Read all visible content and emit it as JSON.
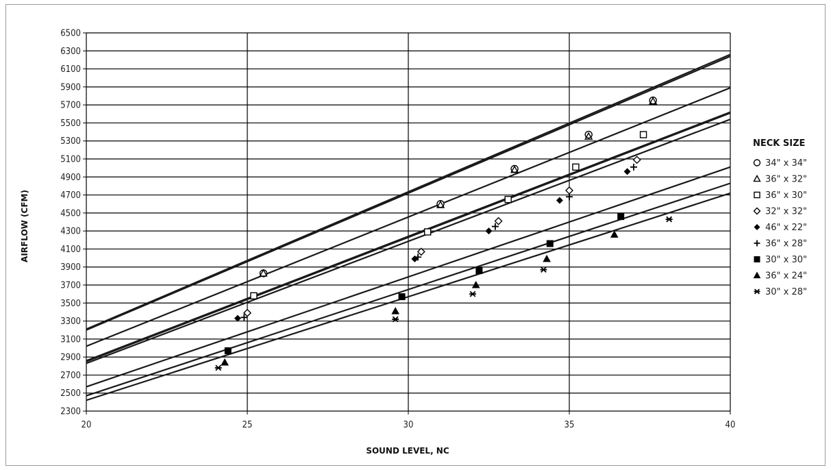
{
  "chart_data": {
    "type": "line",
    "title": "",
    "xlabel": "SOUND LEVEL, NC",
    "ylabel": "AIRFLOW (CFM)",
    "xlim": [
      20,
      40
    ],
    "ylim": [
      2300,
      6500
    ],
    "x_ticks": [
      20,
      25,
      30,
      35,
      40
    ],
    "y_ticks": [
      2300,
      2500,
      2700,
      2900,
      3100,
      3300,
      3500,
      3700,
      3900,
      4100,
      4300,
      4500,
      4700,
      4900,
      5100,
      5300,
      5500,
      5700,
      5900,
      6100,
      6300,
      6500
    ],
    "grid": true,
    "legend_title": "NECK SIZE",
    "legend_position": "right",
    "series": [
      {
        "name": "34\" x 34\"",
        "marker": "circle-open",
        "line": [
          [
            20,
            3200
          ],
          [
            40,
            6240
          ]
        ],
        "points": [
          [
            25.5,
            3830
          ],
          [
            31.0,
            4600
          ],
          [
            33.3,
            4990
          ],
          [
            35.6,
            5370
          ],
          [
            37.6,
            5750
          ]
        ]
      },
      {
        "name": "36\" x 32\"",
        "marker": "triangle-open",
        "line": [
          [
            20,
            3210
          ],
          [
            40,
            6260
          ]
        ],
        "points": [
          [
            25.5,
            3830
          ],
          [
            31.0,
            4590
          ],
          [
            33.3,
            4980
          ],
          [
            35.6,
            5350
          ],
          [
            37.6,
            5740
          ]
        ]
      },
      {
        "name": "36\" x 30\"",
        "marker": "square-open",
        "line": [
          [
            20,
            3020
          ],
          [
            40,
            5890
          ]
        ],
        "points": [
          [
            25.2,
            3580
          ],
          [
            30.6,
            4290
          ],
          [
            33.1,
            4650
          ],
          [
            35.2,
            5010
          ],
          [
            37.3,
            5370
          ]
        ]
      },
      {
        "name": "32\" x 32\"",
        "marker": "diamond-open",
        "line": [
          [
            20,
            2860
          ],
          [
            40,
            5620
          ]
        ],
        "points": [
          [
            25.0,
            3390
          ],
          [
            30.4,
            4070
          ],
          [
            32.8,
            4410
          ],
          [
            35.0,
            4750
          ],
          [
            37.1,
            5090
          ]
        ]
      },
      {
        "name": "46\" x 22\"",
        "marker": "diamond-filled",
        "line": [
          [
            20,
            2850
          ],
          [
            40,
            5610
          ]
        ],
        "points": [
          [
            24.7,
            3330
          ],
          [
            30.2,
            3990
          ],
          [
            32.5,
            4300
          ],
          [
            34.7,
            4640
          ],
          [
            36.8,
            4960
          ]
        ]
      },
      {
        "name": "36\" x 28\"",
        "marker": "plus",
        "line": [
          [
            20,
            2830
          ],
          [
            40,
            5540
          ]
        ],
        "points": [
          [
            24.9,
            3340
          ],
          [
            30.3,
            4010
          ],
          [
            32.7,
            4350
          ],
          [
            35.0,
            4680
          ],
          [
            37.0,
            5010
          ]
        ]
      },
      {
        "name": "30\" x 30\"",
        "marker": "square-filled",
        "line": [
          [
            20,
            2570
          ],
          [
            40,
            5010
          ]
        ],
        "points": [
          [
            24.4,
            2970
          ],
          [
            29.8,
            3570
          ],
          [
            32.2,
            3860
          ],
          [
            34.4,
            4160
          ],
          [
            36.6,
            4460
          ]
        ]
      },
      {
        "name": "36\" x 24\"",
        "marker": "triangle-filled",
        "line": [
          [
            20,
            2470
          ],
          [
            40,
            4830
          ]
        ],
        "points": [
          [
            24.3,
            2840
          ],
          [
            29.6,
            3410
          ],
          [
            32.1,
            3700
          ],
          [
            34.3,
            3990
          ],
          [
            36.4,
            4260
          ]
        ]
      },
      {
        "name": "30\" x 28\"",
        "marker": "asterisk",
        "line": [
          [
            20,
            2420
          ],
          [
            40,
            4720
          ]
        ],
        "points": [
          [
            24.1,
            2780
          ],
          [
            29.6,
            3320
          ],
          [
            32.0,
            3600
          ],
          [
            34.2,
            3870
          ],
          [
            38.1,
            4430
          ]
        ]
      }
    ]
  }
}
